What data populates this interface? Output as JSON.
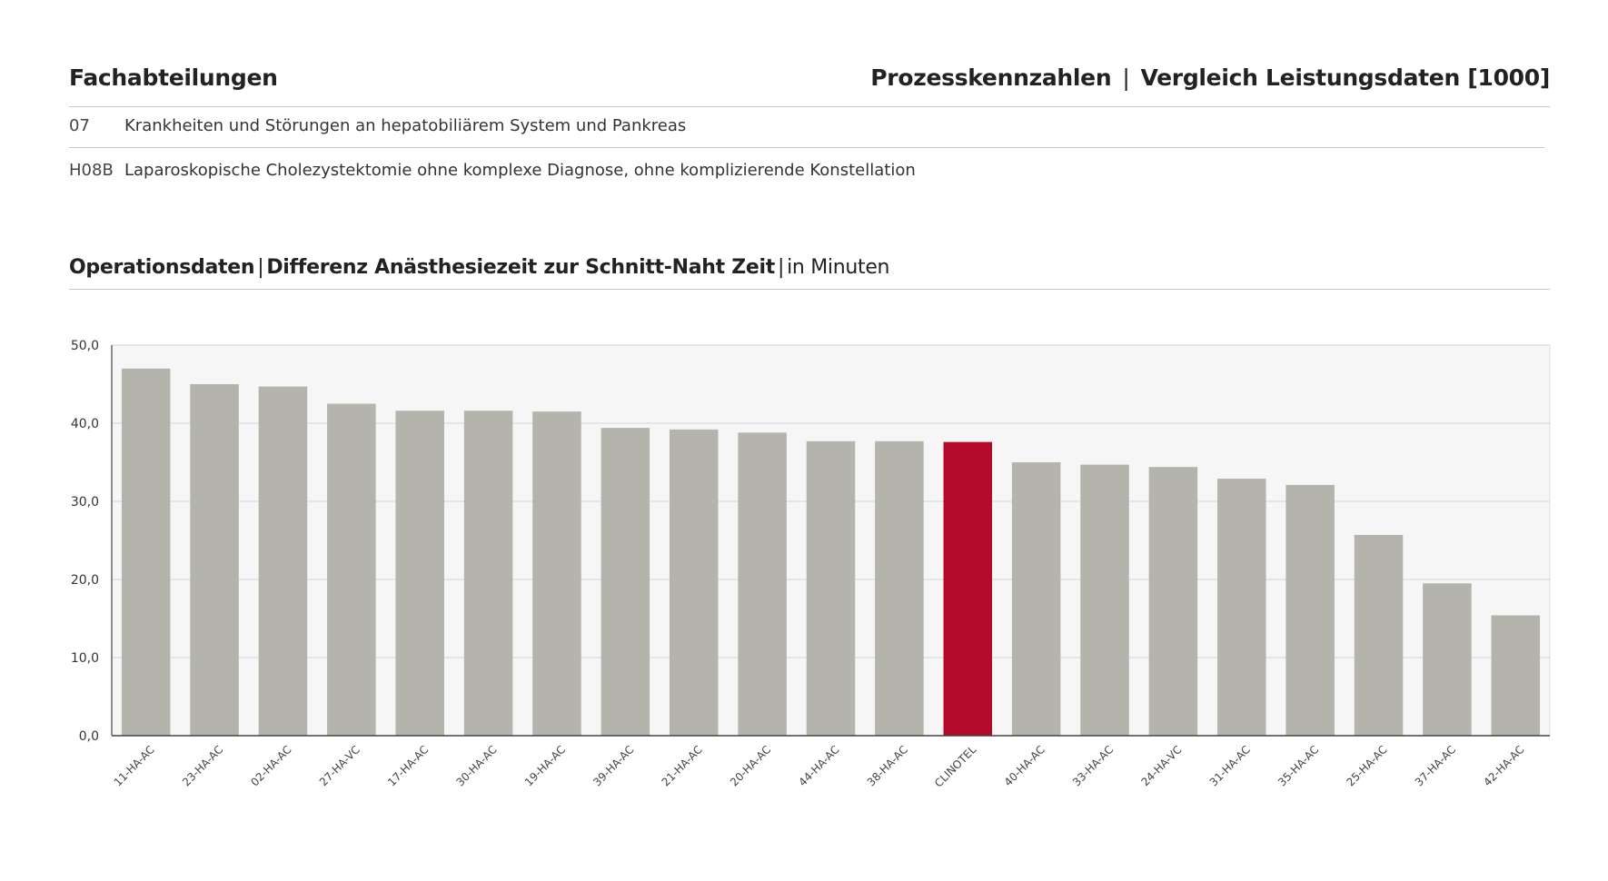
{
  "header": {
    "left_title": "Fachabteilungen",
    "right_title_part1": "Prozesskennzahlen",
    "right_separator": "|",
    "right_title_part2": "Vergleich Leistungsdaten [1000]"
  },
  "info_rows": [
    {
      "code": "07",
      "text": "Krankheiten und Störungen an hepatobiliärem System und Pankreas"
    },
    {
      "code": "H08B",
      "text": "Laparoskopische Cholezystektomie ohne komplexe Diagnose, ohne komplizierende Konstellation"
    }
  ],
  "chart_section": {
    "title_part1": "Operationsdaten",
    "title_part2": "Differenz Anästhesiezeit zur Schnitt-Naht Zeit",
    "title_part3": "in Minuten",
    "separator": "|"
  },
  "chart_data": {
    "type": "bar",
    "categories": [
      "11-HA-AC",
      "23-HA-AC",
      "02-HA-AC",
      "27-HA-VC",
      "17-HA-AC",
      "30-HA-AC",
      "19-HA-AC",
      "39-HA-AC",
      "21-HA-AC",
      "20-HA-AC",
      "44-HA-AC",
      "38-HA-AC",
      "CLINOTEL",
      "40-HA-AC",
      "33-HA-AC",
      "24-HA-VC",
      "31-HA-AC",
      "35-HA-AC",
      "25-HA-AC",
      "37-HA-AC",
      "42-HA-AC"
    ],
    "values": [
      47.0,
      45.0,
      44.7,
      42.5,
      41.6,
      41.6,
      41.5,
      39.4,
      39.2,
      38.8,
      37.7,
      37.7,
      37.6,
      35.0,
      34.7,
      34.4,
      32.9,
      32.1,
      25.7,
      19.5,
      15.4
    ],
    "highlight_category": "CLINOTEL",
    "ylim": [
      0,
      50
    ],
    "yticks": [
      0,
      10,
      20,
      30,
      40,
      50
    ],
    "ytick_labels": [
      "0,0",
      "10,0",
      "20,0",
      "30,0",
      "40,0",
      "50,0"
    ],
    "grid": true,
    "colors": {
      "bar": "#b4b4ac",
      "highlight": "#b5092a",
      "plot_background": "#f6f6f6",
      "grid": "#cdd6d6",
      "axis": "#444444"
    }
  }
}
